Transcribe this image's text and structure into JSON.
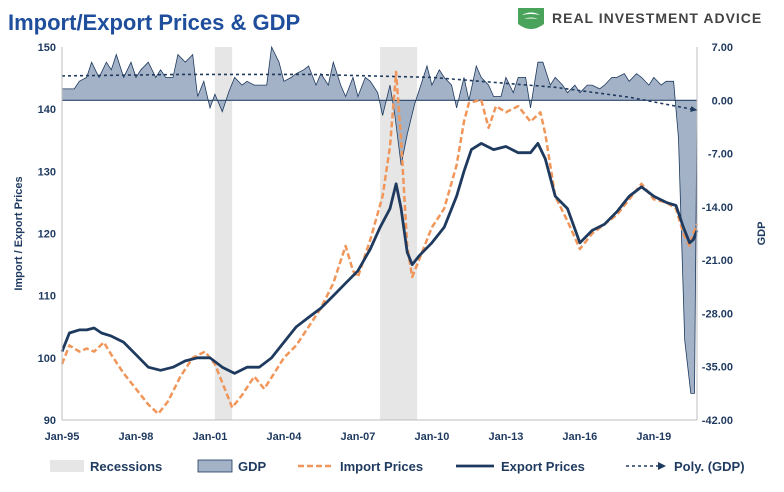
{
  "colors": {
    "title": "#1f4e9c",
    "export": "#1f3a5f",
    "import": "#f0965a",
    "gdp_fill": "#a3b2c6",
    "gdp_stroke": "#1f3a5f",
    "recession": "#e6e6e6",
    "logo_green": "#4aa35a",
    "axis_text": "#1f3a5f"
  },
  "header": {
    "title": "Import/Export Prices & GDP",
    "brand": "REAL INVESTMENT ADVICE",
    "logo_icon": "eagle-shield-icon"
  },
  "chart_data": {
    "type": "line",
    "title": "Import/Export Prices & GDP",
    "ylabel": "Import / Export Prices",
    "y2label": "GDP",
    "ylim": [
      90,
      150
    ],
    "y2lim": [
      -42,
      7
    ],
    "yticks": [
      "90",
      "100",
      "110",
      "120",
      "130",
      "140",
      "150"
    ],
    "y2ticks": [
      "-42.00",
      "-35.00",
      "-28.00",
      "-21.00",
      "-14.00",
      "-7.00",
      "0.00",
      "7.00"
    ],
    "xlim": [
      1995.0,
      2020.75
    ],
    "xticks": [
      {
        "label": "Jan-95",
        "x": 1995.0
      },
      {
        "label": "Jan-98",
        "x": 1998.0
      },
      {
        "label": "Jan-01",
        "x": 2001.0
      },
      {
        "label": "Jan-04",
        "x": 2004.0
      },
      {
        "label": "Jan-07",
        "x": 2007.0
      },
      {
        "label": "Jan-10",
        "x": 2010.0
      },
      {
        "label": "Jan-13",
        "x": 2013.0
      },
      {
        "label": "Jan-16",
        "x": 2016.0
      },
      {
        "label": "Jan-19",
        "x": 2019.0
      }
    ],
    "recessions": [
      [
        2001.2,
        2001.9
      ],
      [
        2007.9,
        2009.4
      ]
    ],
    "series": [
      {
        "name": "Export Prices",
        "axis": "left",
        "points": [
          [
            1995.0,
            101
          ],
          [
            1995.3,
            104
          ],
          [
            1995.7,
            104.5
          ],
          [
            1996.0,
            104.5
          ],
          [
            1996.3,
            104.8
          ],
          [
            1996.6,
            104
          ],
          [
            1997.0,
            103.5
          ],
          [
            1997.5,
            102.5
          ],
          [
            1998.0,
            100.5
          ],
          [
            1998.5,
            98.5
          ],
          [
            1999.0,
            98
          ],
          [
            1999.5,
            98.5
          ],
          [
            2000.0,
            99.5
          ],
          [
            2000.5,
            100
          ],
          [
            2001.0,
            100
          ],
          [
            2001.5,
            98.5
          ],
          [
            2002.0,
            97.5
          ],
          [
            2002.5,
            98.5
          ],
          [
            2003.0,
            98.5
          ],
          [
            2003.5,
            100
          ],
          [
            2004.0,
            102.5
          ],
          [
            2004.5,
            105
          ],
          [
            2005.0,
            106.5
          ],
          [
            2005.5,
            108
          ],
          [
            2006.0,
            110
          ],
          [
            2006.5,
            112
          ],
          [
            2007.0,
            114
          ],
          [
            2007.5,
            117.5
          ],
          [
            2007.9,
            121
          ],
          [
            2008.3,
            124
          ],
          [
            2008.55,
            128
          ],
          [
            2008.75,
            124
          ],
          [
            2009.0,
            117
          ],
          [
            2009.2,
            115
          ],
          [
            2009.5,
            116.5
          ],
          [
            2010.0,
            118.5
          ],
          [
            2010.5,
            121
          ],
          [
            2011.0,
            126
          ],
          [
            2011.3,
            130
          ],
          [
            2011.6,
            133.5
          ],
          [
            2012.0,
            134.5
          ],
          [
            2012.5,
            133.5
          ],
          [
            2013.0,
            134
          ],
          [
            2013.5,
            133
          ],
          [
            2014.0,
            133
          ],
          [
            2014.3,
            134.5
          ],
          [
            2014.6,
            132
          ],
          [
            2015.0,
            126
          ],
          [
            2015.5,
            124
          ],
          [
            2016.0,
            118.5
          ],
          [
            2016.5,
            120.5
          ],
          [
            2017.0,
            121.5
          ],
          [
            2017.5,
            123.5
          ],
          [
            2018.0,
            126
          ],
          [
            2018.5,
            127.5
          ],
          [
            2019.0,
            126
          ],
          [
            2019.5,
            125
          ],
          [
            2019.9,
            124.5
          ],
          [
            2020.2,
            121
          ],
          [
            2020.45,
            118.5
          ],
          [
            2020.6,
            119
          ],
          [
            2020.75,
            120.5
          ]
        ]
      },
      {
        "name": "Import Prices",
        "axis": "left",
        "points": [
          [
            1995.0,
            99
          ],
          [
            1995.3,
            102
          ],
          [
            1995.7,
            101
          ],
          [
            1996.0,
            101.5
          ],
          [
            1996.3,
            101
          ],
          [
            1996.7,
            102.5
          ],
          [
            1997.0,
            100.5
          ],
          [
            1997.5,
            97.5
          ],
          [
            1998.0,
            95
          ],
          [
            1998.5,
            92.5
          ],
          [
            1998.9,
            91
          ],
          [
            1999.3,
            93
          ],
          [
            1999.8,
            97
          ],
          [
            2000.3,
            100
          ],
          [
            2000.8,
            101
          ],
          [
            2001.2,
            99
          ],
          [
            2001.6,
            95
          ],
          [
            2001.9,
            92
          ],
          [
            2002.3,
            94
          ],
          [
            2002.8,
            97
          ],
          [
            2003.2,
            95
          ],
          [
            2003.6,
            97.5
          ],
          [
            2004.0,
            100
          ],
          [
            2004.5,
            102
          ],
          [
            2005.0,
            105
          ],
          [
            2005.5,
            108
          ],
          [
            2006.0,
            112
          ],
          [
            2006.5,
            118
          ],
          [
            2006.8,
            114
          ],
          [
            2007.0,
            113
          ],
          [
            2007.5,
            119
          ],
          [
            2008.0,
            126
          ],
          [
            2008.3,
            134
          ],
          [
            2008.55,
            146
          ],
          [
            2008.75,
            135
          ],
          [
            2009.0,
            118
          ],
          [
            2009.2,
            113
          ],
          [
            2009.5,
            116
          ],
          [
            2010.0,
            121
          ],
          [
            2010.5,
            124
          ],
          [
            2011.0,
            131
          ],
          [
            2011.3,
            138
          ],
          [
            2011.5,
            141
          ],
          [
            2012.0,
            141.5
          ],
          [
            2012.3,
            137
          ],
          [
            2012.6,
            140.5
          ],
          [
            2013.0,
            139.5
          ],
          [
            2013.5,
            140.5
          ],
          [
            2014.0,
            138
          ],
          [
            2014.4,
            139.5
          ],
          [
            2014.6,
            136
          ],
          [
            2015.0,
            126
          ],
          [
            2015.5,
            122
          ],
          [
            2016.0,
            117.5
          ],
          [
            2016.5,
            120
          ],
          [
            2017.0,
            121.5
          ],
          [
            2017.5,
            123
          ],
          [
            2018.0,
            125.5
          ],
          [
            2018.5,
            128
          ],
          [
            2019.0,
            125.5
          ],
          [
            2019.5,
            125
          ],
          [
            2019.9,
            124
          ],
          [
            2020.2,
            120
          ],
          [
            2020.45,
            118
          ],
          [
            2020.6,
            120
          ],
          [
            2020.75,
            121.5
          ]
        ]
      },
      {
        "name": "GDP",
        "axis": "right",
        "type": "area",
        "points": [
          [
            1995.0,
            1.5
          ],
          [
            1995.5,
            1.5
          ],
          [
            1995.7,
            2.5
          ],
          [
            1996.0,
            3
          ],
          [
            1996.2,
            5
          ],
          [
            1996.5,
            3
          ],
          [
            1996.8,
            5
          ],
          [
            1997.0,
            4
          ],
          [
            1997.2,
            6
          ],
          [
            1997.5,
            3
          ],
          [
            1997.8,
            5
          ],
          [
            1998.0,
            3
          ],
          [
            1998.2,
            4
          ],
          [
            1998.5,
            5
          ],
          [
            1998.8,
            3
          ],
          [
            1999.0,
            4
          ],
          [
            1999.2,
            3
          ],
          [
            1999.5,
            3
          ],
          [
            1999.7,
            6
          ],
          [
            2000.0,
            5
          ],
          [
            2000.3,
            6
          ],
          [
            2000.5,
            0.5
          ],
          [
            2000.75,
            2.5
          ],
          [
            2001.0,
            -1
          ],
          [
            2001.2,
            0.8
          ],
          [
            2001.5,
            -1.5
          ],
          [
            2001.75,
            1
          ],
          [
            2002.0,
            3
          ],
          [
            2002.3,
            2
          ],
          [
            2002.5,
            2.5
          ],
          [
            2002.8,
            2
          ],
          [
            2003.0,
            2
          ],
          [
            2003.3,
            2
          ],
          [
            2003.5,
            7
          ],
          [
            2003.8,
            5
          ],
          [
            2004.0,
            2.5
          ],
          [
            2004.3,
            3
          ],
          [
            2004.5,
            3.5
          ],
          [
            2004.8,
            4
          ],
          [
            2005.0,
            4.5
          ],
          [
            2005.3,
            2
          ],
          [
            2005.5,
            3.5
          ],
          [
            2005.8,
            2
          ],
          [
            2006.0,
            5
          ],
          [
            2006.3,
            2
          ],
          [
            2006.5,
            0.5
          ],
          [
            2006.8,
            3
          ],
          [
            2007.0,
            0.5
          ],
          [
            2007.3,
            3
          ],
          [
            2007.5,
            2.5
          ],
          [
            2007.8,
            1
          ],
          [
            2008.0,
            -2
          ],
          [
            2008.3,
            2
          ],
          [
            2008.5,
            -2
          ],
          [
            2008.75,
            -8.5
          ],
          [
            2009.0,
            -4.5
          ],
          [
            2009.3,
            -0.5
          ],
          [
            2009.5,
            1.5
          ],
          [
            2009.8,
            4.5
          ],
          [
            2010.0,
            2
          ],
          [
            2010.3,
            4
          ],
          [
            2010.5,
            3
          ],
          [
            2010.8,
            2
          ],
          [
            2011.0,
            -1
          ],
          [
            2011.3,
            3
          ],
          [
            2011.5,
            0
          ],
          [
            2011.8,
            4.5
          ],
          [
            2012.0,
            3
          ],
          [
            2012.3,
            2
          ],
          [
            2012.5,
            0.5
          ],
          [
            2012.8,
            0.5
          ],
          [
            2013.0,
            3
          ],
          [
            2013.3,
            1
          ],
          [
            2013.5,
            3
          ],
          [
            2013.8,
            3
          ],
          [
            2014.0,
            -1
          ],
          [
            2014.3,
            5
          ],
          [
            2014.5,
            5
          ],
          [
            2014.8,
            2
          ],
          [
            2015.0,
            3
          ],
          [
            2015.3,
            2
          ],
          [
            2015.5,
            1
          ],
          [
            2015.8,
            2
          ],
          [
            2016.0,
            1
          ],
          [
            2016.3,
            2
          ],
          [
            2016.5,
            2
          ],
          [
            2016.8,
            1.5
          ],
          [
            2017.0,
            2
          ],
          [
            2017.3,
            3
          ],
          [
            2017.5,
            3
          ],
          [
            2017.8,
            3.5
          ],
          [
            2018.0,
            2.5
          ],
          [
            2018.3,
            3.5
          ],
          [
            2018.5,
            3
          ],
          [
            2018.8,
            2
          ],
          [
            2019.0,
            3
          ],
          [
            2019.3,
            2
          ],
          [
            2019.5,
            2.5
          ],
          [
            2019.8,
            2.5
          ],
          [
            2020.0,
            -5
          ],
          [
            2020.25,
            -31.5
          ],
          [
            2020.5,
            -38.5
          ],
          [
            2020.65,
            -38.5
          ],
          [
            2020.75,
            -1.5
          ]
        ]
      },
      {
        "name": "Poly. (GDP)",
        "axis": "right",
        "type": "trend",
        "points": [
          [
            1995.0,
            3.2
          ],
          [
            2000.0,
            3.4
          ],
          [
            2005.0,
            3.4
          ],
          [
            2010.0,
            3.0
          ],
          [
            2015.0,
            1.7
          ],
          [
            2018.0,
            0.4
          ],
          [
            2020.75,
            -1.3
          ]
        ]
      }
    ],
    "legend": {
      "position": "bottom",
      "items": [
        {
          "label": "Recessions",
          "kind": "recession"
        },
        {
          "label": "GDP",
          "kind": "area"
        },
        {
          "label": "Import Prices",
          "kind": "dashed"
        },
        {
          "label": "Export Prices",
          "kind": "solid"
        },
        {
          "label": "Poly. (GDP)",
          "kind": "dotted-arrow"
        }
      ]
    }
  }
}
